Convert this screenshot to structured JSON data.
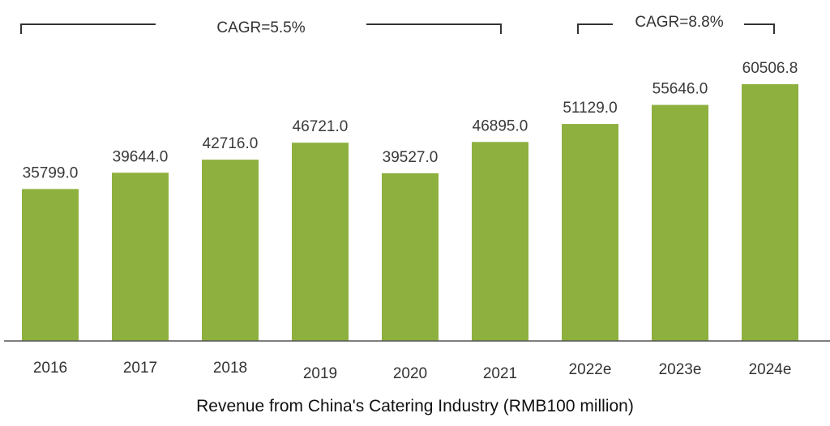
{
  "chart_data": {
    "type": "bar",
    "title": "Revenue from China's Catering Industry (RMB100 million)",
    "xlabel": "",
    "ylabel": "",
    "categories": [
      "2016",
      "2017",
      "2018",
      "2019",
      "2020",
      "2021",
      "2022e",
      "2023e",
      "2024e"
    ],
    "values": [
      35799.0,
      39644.0,
      42716.0,
      46721.0,
      39527.0,
      46895.0,
      51129.0,
      55646.0,
      60506.8
    ],
    "value_labels": [
      "35799.0",
      "39644.0",
      "42716.0",
      "46721.0",
      "39527.0",
      "46895.0",
      "51129.0",
      "55646.0",
      "60506.8"
    ],
    "ylim": [
      0,
      80000
    ],
    "grid": false,
    "legend": "none",
    "annotations": [
      {
        "text": "CAGR=5.5%",
        "from": "2016",
        "to": "2021"
      },
      {
        "text": "CAGR=8.8%",
        "from": "2022e",
        "to": "2024e"
      }
    ]
  },
  "colors": {
    "bar": "#8db03f",
    "text": "#333333",
    "background": "#ffffff"
  }
}
